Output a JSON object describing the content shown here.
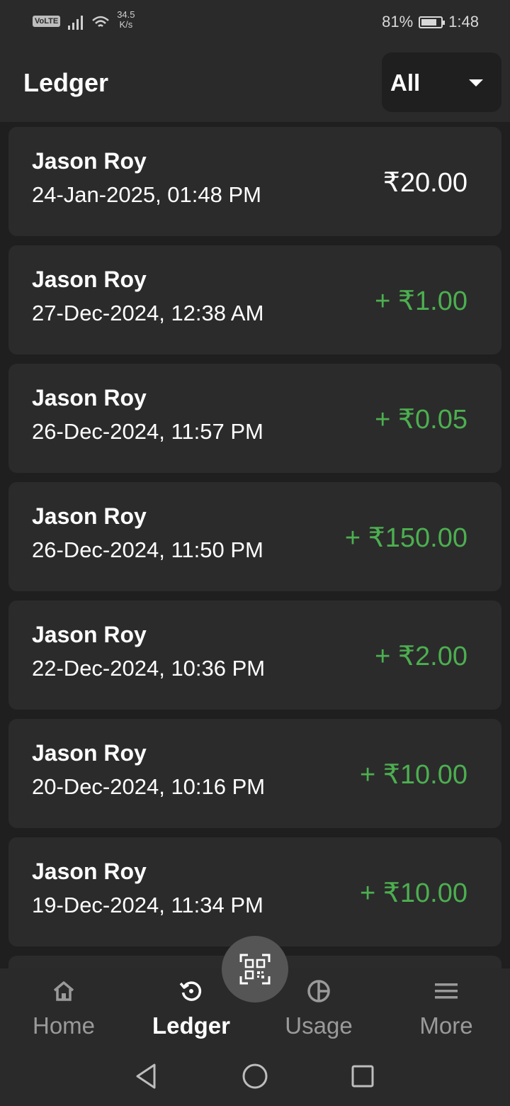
{
  "status_bar": {
    "volte": "VoLTE",
    "speed_value": "34.5",
    "speed_unit": "K/s",
    "battery": "81%",
    "battery_level": 0.81,
    "time": "1:48"
  },
  "header": {
    "title": "Ledger",
    "filter_value": "All"
  },
  "transactions": [
    {
      "name": "Jason Roy",
      "date": "24-Jan-2025, 01:48 PM",
      "amount": "₹20.00",
      "type": "debit"
    },
    {
      "name": "Jason Roy",
      "date": "27-Dec-2024, 12:38 AM",
      "amount": "+ ₹1.00",
      "type": "credit"
    },
    {
      "name": "Jason Roy",
      "date": "26-Dec-2024, 11:57 PM",
      "amount": "+ ₹0.05",
      "type": "credit"
    },
    {
      "name": "Jason Roy",
      "date": "26-Dec-2024, 11:50 PM",
      "amount": "+ ₹150.00",
      "type": "credit"
    },
    {
      "name": "Jason Roy",
      "date": "22-Dec-2024, 10:36 PM",
      "amount": "+ ₹2.00",
      "type": "credit"
    },
    {
      "name": "Jason Roy",
      "date": "20-Dec-2024, 10:16 PM",
      "amount": "+ ₹10.00",
      "type": "credit"
    },
    {
      "name": "Jason Roy",
      "date": "19-Dec-2024, 11:34 PM",
      "amount": "+ ₹10.00",
      "type": "credit"
    }
  ],
  "bottom_nav": {
    "items": [
      {
        "label": "Home",
        "icon": "home-icon"
      },
      {
        "label": "Ledger",
        "icon": "history-icon",
        "active": true
      },
      {
        "label": "Usage",
        "icon": "pie-chart-icon"
      },
      {
        "label": "More",
        "icon": "menu-icon"
      }
    ],
    "fab_icon": "qr-scan-icon"
  },
  "colors": {
    "background": "#1f1f1f",
    "card": "#2b2b2b",
    "credit": "#4caf50",
    "inactive": "#9a9a9a"
  }
}
